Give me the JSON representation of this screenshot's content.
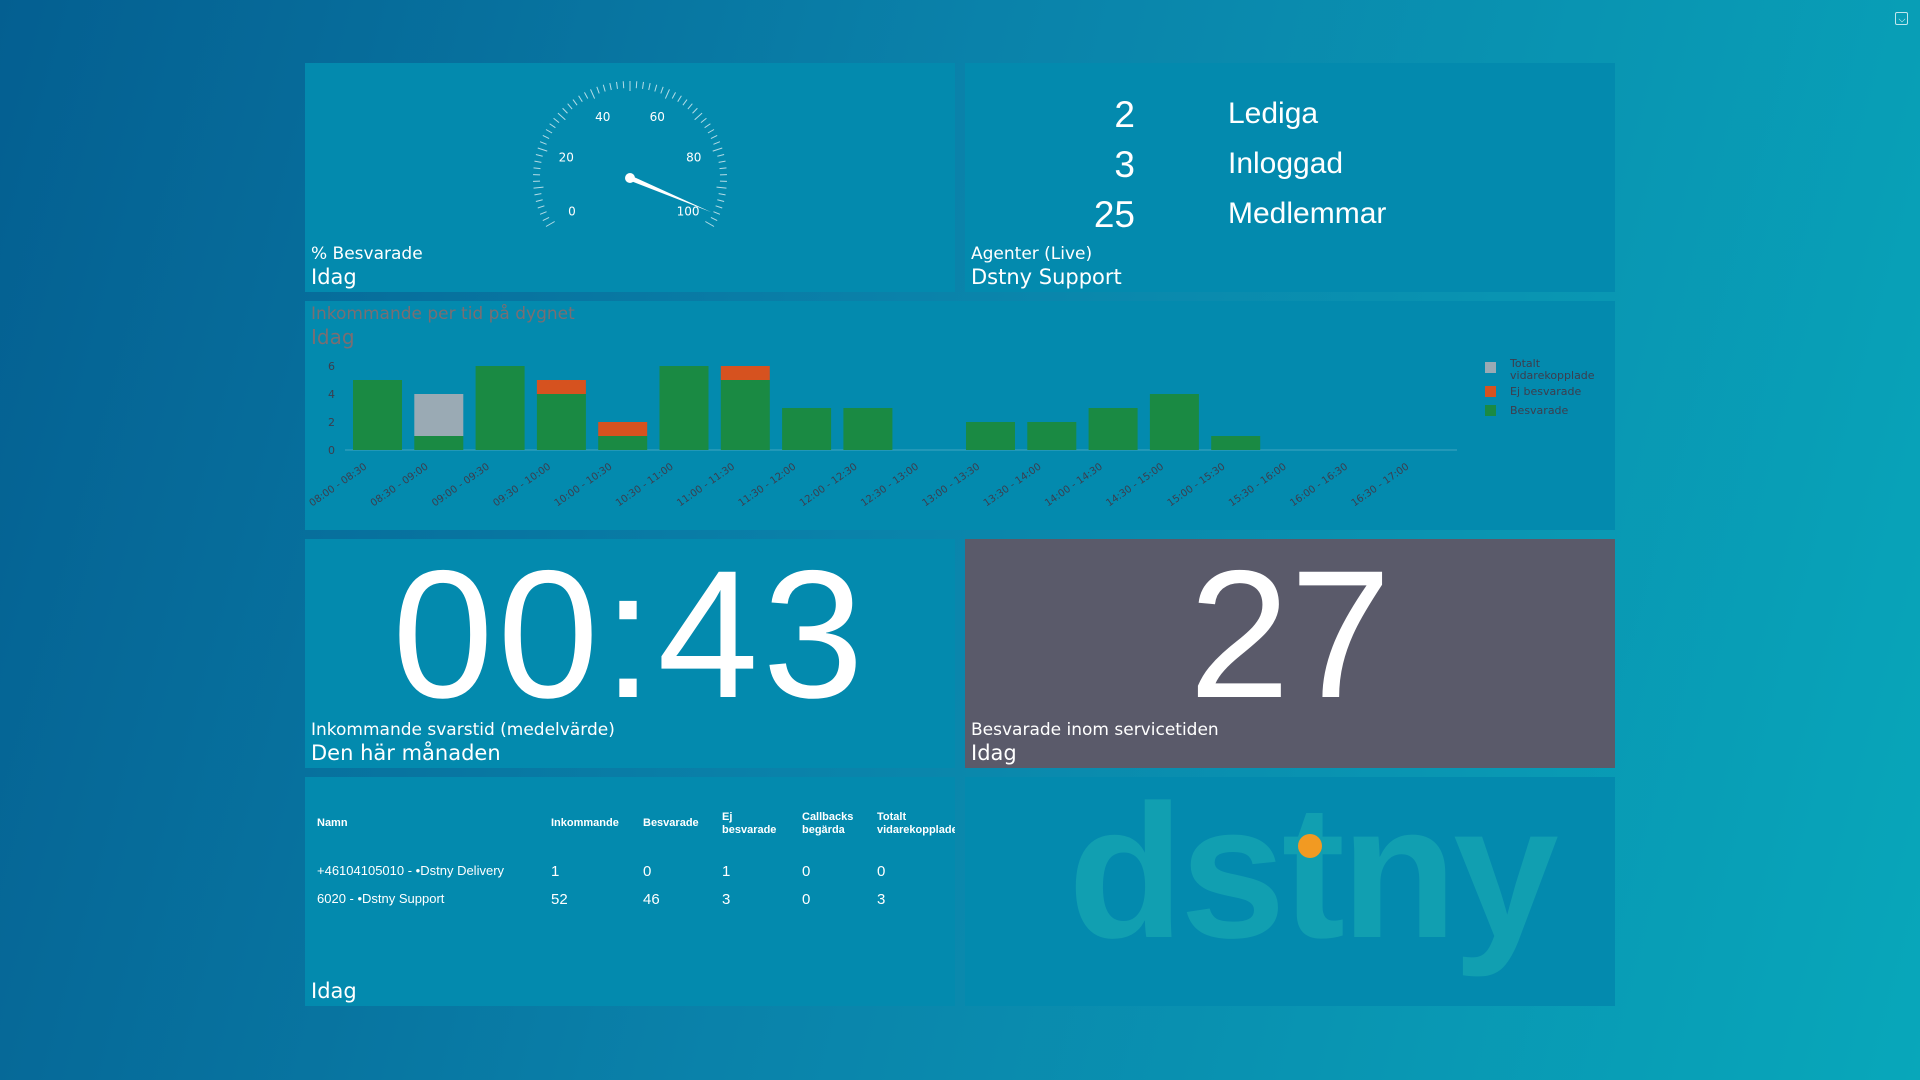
{
  "colors": {
    "answered": "#1a8a43",
    "unanswered": "#d6521f",
    "forwarded": "#9aaab4",
    "panel": "#038aae",
    "service_panel": "#5a5a6a",
    "logo_dot": "#f29a22"
  },
  "gauge": {
    "value_percent": 97,
    "ticks": [
      "0",
      "20",
      "40",
      "60",
      "80",
      "100"
    ],
    "caption_small": "% Besvarade",
    "caption_big": "Idag"
  },
  "agents": {
    "rows": [
      {
        "count": "2",
        "label": "Lediga"
      },
      {
        "count": "3",
        "label": "Inloggad"
      },
      {
        "count": "25",
        "label": "Medlemmar"
      }
    ],
    "caption_small": "Agenter (Live)",
    "caption_big": "Dstny Support"
  },
  "chart_data": {
    "type": "bar",
    "stacked": true,
    "title": "Inkommande per tid på dygnet",
    "subtitle": "Idag",
    "categories": [
      "08:00 - 08:30",
      "08:30 - 09:00",
      "09:00 - 09:30",
      "09:30 - 10:00",
      "10:00 - 10:30",
      "10:30 - 11:00",
      "11:00 - 11:30",
      "11:30 - 12:00",
      "12:00 - 12:30",
      "12:30 - 13:00",
      "13:00 - 13:30",
      "13:30 - 14:00",
      "14:00 - 14:30",
      "14:30 - 15:00",
      "15:00 - 15:30",
      "15:30 - 16:00",
      "16:00 - 16:30",
      "16:30 - 17:00"
    ],
    "series": [
      {
        "name": "Besvarade",
        "values": [
          5,
          1,
          6,
          4,
          1,
          6,
          5,
          3,
          3,
          0,
          2,
          2,
          3,
          4,
          1,
          0,
          0,
          0
        ]
      },
      {
        "name": "Ej besvarade",
        "values": [
          0,
          0,
          0,
          1,
          1,
          0,
          1,
          0,
          0,
          0,
          0,
          0,
          0,
          0,
          0,
          0,
          0,
          0
        ]
      },
      {
        "name": "Totalt vidarekopplade",
        "values": [
          0,
          3,
          0,
          0,
          0,
          0,
          0,
          0,
          0,
          0,
          0,
          0,
          0,
          0,
          0,
          0,
          0,
          0
        ]
      }
    ],
    "legend": [
      "Totalt vidarekopplade",
      "Ej besvarade",
      "Besvarade"
    ],
    "legend_position": "right",
    "yticks": [
      "0",
      "2",
      "4",
      "6"
    ],
    "ylim": [
      0,
      6
    ]
  },
  "response_time": {
    "value": "00:43",
    "caption_small": "Inkommande svarstid (medelvärde)",
    "caption_big": "Den här månaden"
  },
  "service_level": {
    "value": "27",
    "caption_small": "Besvarade inom servicetiden",
    "caption_big": "Idag"
  },
  "queue_table": {
    "headers": [
      "Namn",
      "Inkommande",
      "Besvarade",
      "Ej besvarade",
      "Callbacks begärda",
      "Totalt vidarekopplade"
    ],
    "header_lines": [
      [
        "Namn"
      ],
      [
        "Inkommande"
      ],
      [
        "Besvarade"
      ],
      [
        "Ej",
        "besvarade"
      ],
      [
        "Callbacks",
        "begärda"
      ],
      [
        "Totalt",
        "vidarekopplade"
      ]
    ],
    "rows": [
      [
        "+46104105010 - •Dstny Delivery",
        "1",
        "0",
        "1",
        "0",
        "0"
      ],
      [
        "6020 - •Dstny Support",
        "52",
        "46",
        "3",
        "0",
        "3"
      ]
    ],
    "caption_big": "Idag"
  },
  "logo": {
    "text": "dstny"
  }
}
